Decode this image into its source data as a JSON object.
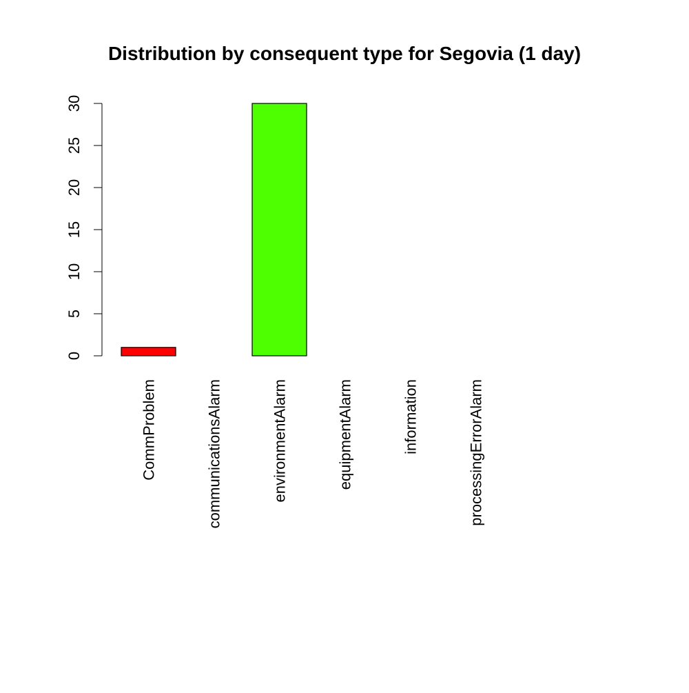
{
  "chart_data": {
    "type": "bar",
    "title": "Distribution by consequent type for Segovia (1 day)",
    "xlabel": "",
    "ylabel": "",
    "categories": [
      "CommProblem",
      "communicationsAlarm",
      "environmentAlarm",
      "equipmentAlarm",
      "information",
      "processingErrorAlarm",
      ""
    ],
    "values": [
      1,
      0,
      30,
      0,
      0,
      0,
      0
    ],
    "colors": [
      "#ff0000",
      "#ff0000",
      "#4dff00",
      "#00ff4d",
      "#00ffff",
      "#0000ff",
      "#ff00ff"
    ],
    "ylim": [
      0,
      30
    ],
    "yticks": [
      0,
      5,
      10,
      15,
      20,
      25,
      30
    ],
    "grid": false,
    "legend": "none"
  }
}
